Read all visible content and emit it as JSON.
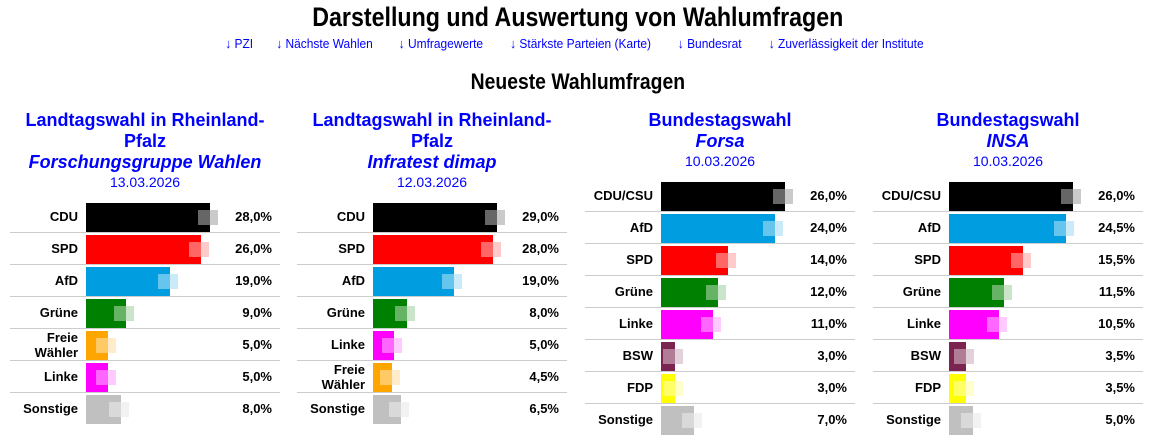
{
  "title": "Darstellung und Auswertung von Wahlumfragen",
  "nav": [
    "↓ PZI",
    "↓ Nächste Wahlen",
    "↓ Umfragewerte",
    "↓ Stärkste Parteien (Karte)",
    "↓ Bundesrat",
    "↓ Zuverlässigkeit der Institute"
  ],
  "subtitle": "Neueste Wahlumfragen",
  "colors": {
    "CDU": "#000000",
    "CDU/CSU": "#000000",
    "SPD": "#ff0000",
    "AfD": "#009ee0",
    "Grüne": "#008000",
    "Freie Wähler": "#ffa500",
    "Linke": "#ff00ff",
    "Sonstige": "#c0c0c0",
    "BSW": "#7b2450",
    "FDP": "#ffff00"
  },
  "polls": [
    {
      "election": "Landtagswahl in Rheinland-Pfalz",
      "institute": "Forschungsgruppe Wahlen",
      "date": "13.03.2026",
      "rows": [
        {
          "party": "CDU",
          "value": 28.0,
          "label": "28,0%"
        },
        {
          "party": "SPD",
          "value": 26.0,
          "label": "26,0%"
        },
        {
          "party": "AfD",
          "value": 19.0,
          "label": "19,0%"
        },
        {
          "party": "Grüne",
          "value": 9.0,
          "label": "9,0%"
        },
        {
          "party": "Freie Wähler",
          "value": 5.0,
          "label": "5,0%"
        },
        {
          "party": "Linke",
          "value": 5.0,
          "label": "5,0%"
        },
        {
          "party": "Sonstige",
          "value": 8.0,
          "label": "8,0%"
        }
      ]
    },
    {
      "election": "Landtagswahl in Rheinland-Pfalz",
      "institute": "Infratest dimap",
      "date": "12.03.2026",
      "rows": [
        {
          "party": "CDU",
          "value": 29.0,
          "label": "29,0%"
        },
        {
          "party": "SPD",
          "value": 28.0,
          "label": "28,0%"
        },
        {
          "party": "AfD",
          "value": 19.0,
          "label": "19,0%"
        },
        {
          "party": "Grüne",
          "value": 8.0,
          "label": "8,0%"
        },
        {
          "party": "Linke",
          "value": 5.0,
          "label": "5,0%"
        },
        {
          "party": "Freie Wähler",
          "value": 4.5,
          "label": "4,5%"
        },
        {
          "party": "Sonstige",
          "value": 6.5,
          "label": "6,5%"
        }
      ]
    },
    {
      "election": "Bundestagswahl",
      "institute": "Forsa",
      "date": "10.03.2026",
      "rows": [
        {
          "party": "CDU/CSU",
          "value": 26.0,
          "label": "26,0%"
        },
        {
          "party": "AfD",
          "value": 24.0,
          "label": "24,0%"
        },
        {
          "party": "SPD",
          "value": 14.0,
          "label": "14,0%"
        },
        {
          "party": "Grüne",
          "value": 12.0,
          "label": "12,0%"
        },
        {
          "party": "Linke",
          "value": 11.0,
          "label": "11,0%"
        },
        {
          "party": "BSW",
          "value": 3.0,
          "label": "3,0%"
        },
        {
          "party": "FDP",
          "value": 3.0,
          "label": "3,0%"
        },
        {
          "party": "Sonstige",
          "value": 7.0,
          "label": "7,0%"
        }
      ]
    },
    {
      "election": "Bundestagswahl",
      "institute": "INSA",
      "date": "10.03.2026",
      "rows": [
        {
          "party": "CDU/CSU",
          "value": 26.0,
          "label": "26,0%"
        },
        {
          "party": "AfD",
          "value": 24.5,
          "label": "24,5%"
        },
        {
          "party": "SPD",
          "value": 15.5,
          "label": "15,5%"
        },
        {
          "party": "Grüne",
          "value": 11.5,
          "label": "11,5%"
        },
        {
          "party": "Linke",
          "value": 10.5,
          "label": "10,5%"
        },
        {
          "party": "BSW",
          "value": 3.5,
          "label": "3,5%"
        },
        {
          "party": "FDP",
          "value": 3.5,
          "label": "3,5%"
        },
        {
          "party": "Sonstige",
          "value": 5.0,
          "label": "5,0%"
        }
      ]
    }
  ]
}
